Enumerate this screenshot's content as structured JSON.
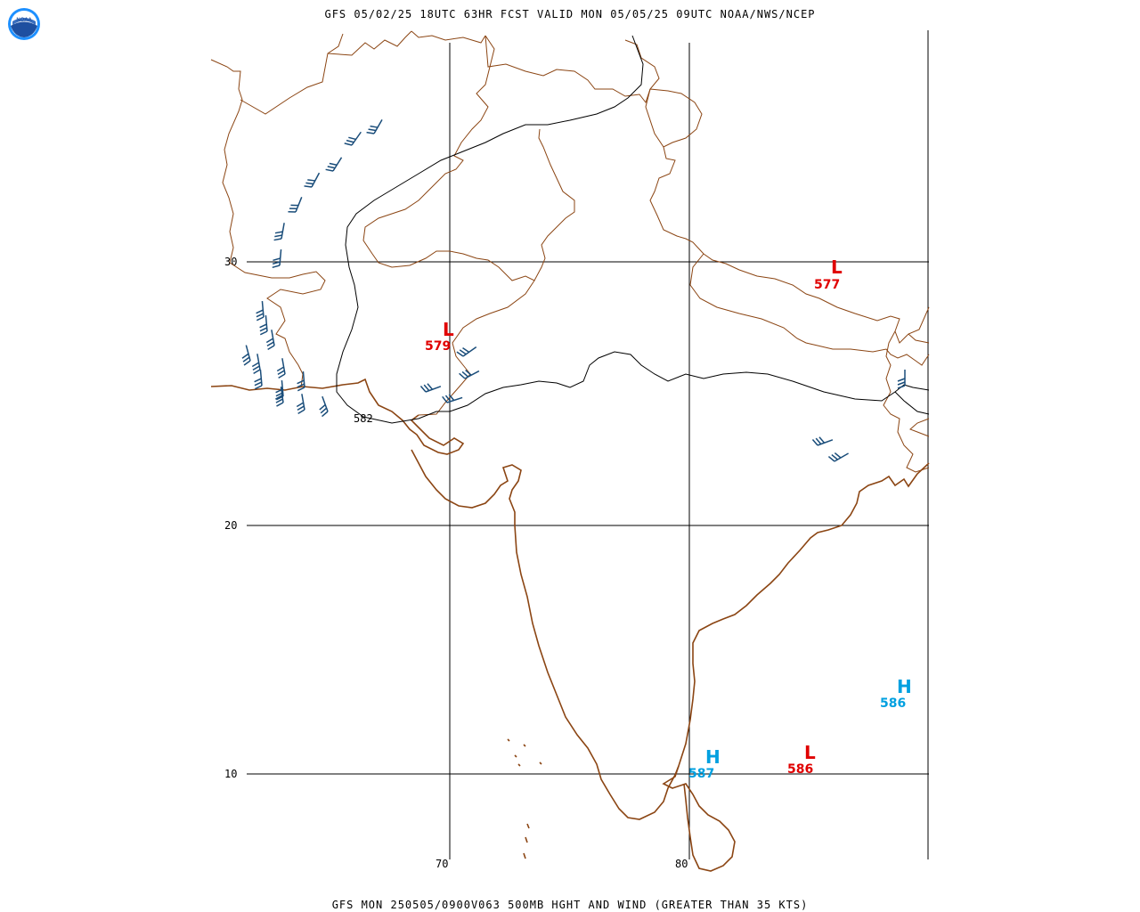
{
  "header": {
    "title": "GFS 05/02/25 18UTC 63HR FCST VALID MON 05/05/25 09UTC NOAA/NWS/NCEP"
  },
  "footer": {
    "title": "GFS MON 250505/0900V063 500MB HGHT AND WIND (GREATER THAN 35 KTS)"
  },
  "logo": {
    "text": "NOAA"
  },
  "grid": {
    "latitudes": [
      "30",
      "20",
      "10"
    ],
    "longitudes": [
      "70",
      "80"
    ]
  },
  "contour": {
    "label": "582"
  },
  "centers": [
    {
      "id": "low-pakistan",
      "symbol": "L",
      "value": "579",
      "color": "#e00000"
    },
    {
      "id": "low-nepal",
      "symbol": "L",
      "value": "577",
      "color": "#e00000"
    },
    {
      "id": "low-bay",
      "symbol": "L",
      "value": "586",
      "color": "#e00000"
    },
    {
      "id": "high-srilanka",
      "symbol": "H",
      "value": "587",
      "color": "#00a0e0"
    },
    {
      "id": "high-bay",
      "symbol": "H",
      "value": "586",
      "color": "#00a0e0"
    }
  ],
  "colors": {
    "coast": "#8b4513",
    "barb": "#1a4d7a",
    "grid": "#000000"
  }
}
